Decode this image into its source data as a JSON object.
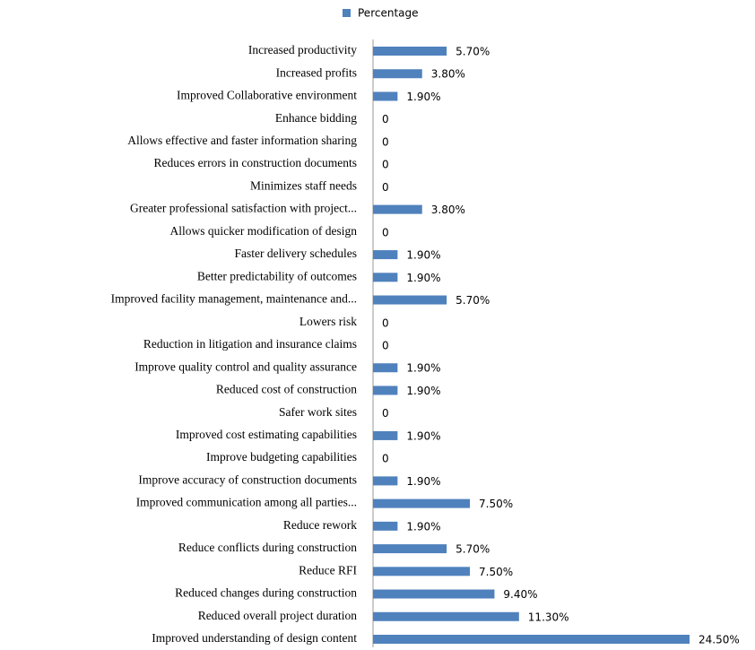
{
  "chart_data": {
    "type": "bar",
    "orientation": "horizontal",
    "categories": [
      "Increased productivity",
      "Increased profits",
      "Improved Collaborative environment",
      "Enhance bidding",
      "Allows effective and faster information sharing",
      "Reduces errors in construction documents",
      "Minimizes staff needs",
      "Greater professional satisfaction with project...",
      "Allows quicker modification of design",
      "Faster delivery schedules",
      "Better predictability of outcomes",
      "Improved facility management, maintenance and...",
      "Lowers risk",
      "Reduction in litigation and insurance claims",
      "Improve quality control and quality assurance",
      "Reduced cost of construction",
      "Safer work sites",
      "Improved cost estimating capabilities",
      "Improve budgeting capabilities",
      "Improve accuracy of construction documents",
      "Improved communication among all parties...",
      "Reduce rework",
      "Reduce conflicts during construction",
      "Reduce RFI",
      "Reduced changes during construction",
      "Reduced overall project duration",
      "Improved understanding of design content"
    ],
    "series": [
      {
        "name": "Percentage",
        "color": "#4f81bd",
        "values": [
          5.7,
          3.8,
          1.9,
          0,
          0,
          0,
          0,
          3.8,
          0,
          1.9,
          1.9,
          5.7,
          0,
          0,
          1.9,
          1.9,
          0,
          1.9,
          0,
          1.9,
          7.5,
          1.9,
          5.7,
          7.5,
          9.4,
          11.3,
          24.5
        ],
        "value_labels": [
          "5.70%",
          "3.80%",
          "1.90%",
          "0",
          "0",
          "0",
          "0",
          "3.80%",
          "0",
          "1.90%",
          "1.90%",
          "5.70%",
          "0",
          "0",
          "1.90%",
          "1.90%",
          "0",
          "1.90%",
          "0",
          "1.90%",
          "7.50%",
          "1.90%",
          "5.70%",
          "7.50%",
          "9.40%",
          "11.30%",
          "24.50%"
        ]
      }
    ],
    "legend": "top"
  }
}
